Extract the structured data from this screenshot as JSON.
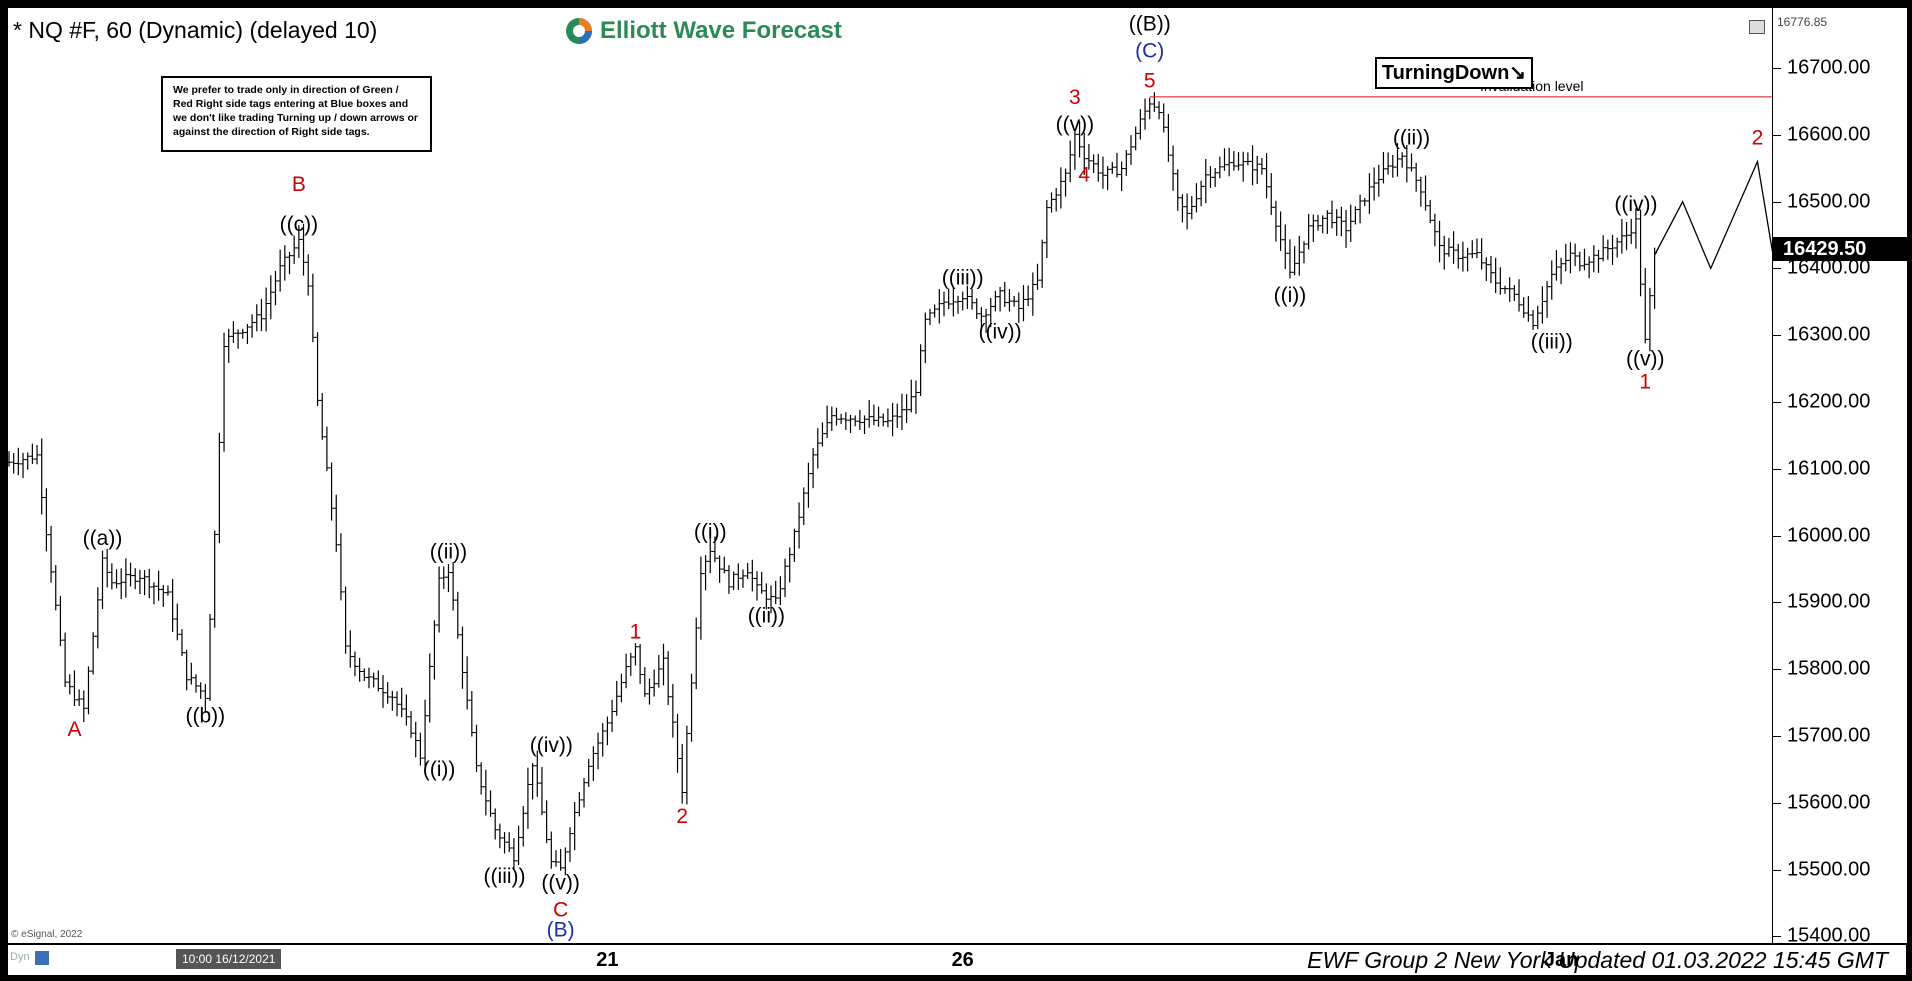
{
  "header": {
    "title": "* NQ #F, 60 (Dynamic) (delayed 10)",
    "logo_text": "Elliott Wave Forecast"
  },
  "note": {
    "text": "We prefer to trade only in direction of Green / Red Right side tags entering at Blue boxes and we don't like trading Turning up / down arrows or against the direction of Right side tags."
  },
  "badge": {
    "label": "TurningDown↘"
  },
  "footer": {
    "text": "EWF Group 2 New York Updated 01.03.2022 15:45 GMT",
    "cursor_date": "10:00 16/12/2021",
    "copyright": "© eSignal, 2022",
    "dyn_label": "Dyn"
  },
  "chart_data": {
    "type": "bar",
    "symbol": "NQ #F",
    "timeframe": "60",
    "ylim": [
      15390,
      16790
    ],
    "y_ticks": [
      "16700.00",
      "16600.00",
      "16500.00",
      "16400.00",
      "16300.00",
      "16200.00",
      "16100.00",
      "16000.00",
      "15900.00",
      "15800.00",
      "15700.00",
      "15600.00",
      "15500.00",
      "15400.00"
    ],
    "y_tick_values": [
      16700,
      16600,
      16500,
      16400,
      16300,
      16200,
      16100,
      16000,
      15900,
      15800,
      15700,
      15600,
      15500,
      15400
    ],
    "top_price": "16776.85",
    "last_price": "16429.50",
    "last_price_value": 16429.5,
    "x_ticks": [
      {
        "label": "21",
        "bar": 64
      },
      {
        "label": "26",
        "bar": 102
      },
      {
        "label": "Jan",
        "bar": 166
      }
    ],
    "path": [
      [
        0,
        16110
      ],
      [
        3,
        16120
      ],
      [
        6,
        15780
      ],
      [
        8,
        15740
      ],
      [
        10,
        15960
      ],
      [
        11,
        15930
      ],
      [
        14,
        15940
      ],
      [
        17,
        15910
      ],
      [
        19,
        15790
      ],
      [
        21,
        15760
      ],
      [
        22,
        16000
      ],
      [
        23,
        16290
      ],
      [
        25,
        16310
      ],
      [
        27,
        16330
      ],
      [
        29,
        16400
      ],
      [
        31,
        16440
      ],
      [
        32,
        16380
      ],
      [
        33,
        16200
      ],
      [
        35,
        15990
      ],
      [
        36,
        15830
      ],
      [
        38,
        15790
      ],
      [
        41,
        15760
      ],
      [
        43,
        15710
      ],
      [
        44,
        15670
      ],
      [
        46,
        15930
      ],
      [
        47,
        15950
      ],
      [
        50,
        15650
      ],
      [
        52,
        15560
      ],
      [
        54,
        15520
      ],
      [
        56,
        15660
      ],
      [
        58,
        15510
      ],
      [
        59,
        15500
      ],
      [
        60,
        15560
      ],
      [
        62,
        15660
      ],
      [
        64,
        15720
      ],
      [
        66,
        15800
      ],
      [
        67,
        15830
      ],
      [
        68,
        15760
      ],
      [
        70,
        15810
      ],
      [
        72,
        15620
      ],
      [
        74,
        15950
      ],
      [
        75,
        15980
      ],
      [
        77,
        15930
      ],
      [
        79,
        15950
      ],
      [
        80,
        15920
      ],
      [
        82,
        15900
      ],
      [
        84,
        16000
      ],
      [
        86,
        16120
      ],
      [
        88,
        16180
      ],
      [
        94,
        16170
      ],
      [
        96,
        16190
      ],
      [
        97,
        16220
      ],
      [
        98,
        16320
      ],
      [
        100,
        16350
      ],
      [
        102,
        16360
      ],
      [
        104,
        16330
      ],
      [
        106,
        16360
      ],
      [
        108,
        16340
      ],
      [
        110,
        16380
      ],
      [
        111,
        16490
      ],
      [
        113,
        16540
      ],
      [
        114,
        16600
      ],
      [
        115,
        16570
      ],
      [
        117,
        16540
      ],
      [
        119,
        16550
      ],
      [
        121,
        16620
      ],
      [
        122,
        16650
      ],
      [
        123,
        16640
      ],
      [
        125,
        16500
      ],
      [
        126,
        16480
      ],
      [
        128,
        16540
      ],
      [
        131,
        16560
      ],
      [
        134,
        16550
      ],
      [
        137,
        16390
      ],
      [
        139,
        16460
      ],
      [
        141,
        16480
      ],
      [
        143,
        16460
      ],
      [
        146,
        16530
      ],
      [
        149,
        16570
      ],
      [
        151,
        16520
      ],
      [
        153,
        16430
      ],
      [
        155,
        16420
      ],
      [
        157,
        16420
      ],
      [
        159,
        16380
      ],
      [
        161,
        16360
      ],
      [
        163,
        16320
      ],
      [
        165,
        16390
      ],
      [
        167,
        16420
      ],
      [
        168,
        16410
      ],
      [
        170,
        16420
      ],
      [
        173,
        16450
      ],
      [
        174,
        16470
      ],
      [
        175,
        16290
      ],
      [
        176,
        16420
      ]
    ],
    "projection": [
      [
        176,
        16420
      ],
      [
        179,
        16500
      ],
      [
        182,
        16400
      ],
      [
        187,
        16560
      ],
      [
        192,
        16140
      ]
    ],
    "invalidation": {
      "label": "Invalidation level",
      "value": 16656.88,
      "value_label": "16656.88",
      "bar_start": 122,
      "bar_end": 208
    },
    "annotations": [
      {
        "text": "A",
        "bar": 7,
        "price": 15730,
        "pos": "below",
        "color": "#cc0000"
      },
      {
        "text": "((a))",
        "bar": 10,
        "price": 15980,
        "pos": "above",
        "color": "#000000"
      },
      {
        "text": "((b))",
        "bar": 21,
        "price": 15750,
        "pos": "below",
        "color": "#000000"
      },
      {
        "text": "B",
        "bar": 31,
        "price": 16510,
        "pos": "above",
        "color": "#cc0000"
      },
      {
        "text": "((c))",
        "bar": 31,
        "price": 16450,
        "pos": "above",
        "color": "#000000"
      },
      {
        "text": "((i))",
        "bar": 46,
        "price": 15670,
        "pos": "below",
        "color": "#000000"
      },
      {
        "text": "((ii))",
        "bar": 47,
        "price": 15960,
        "pos": "above",
        "color": "#000000"
      },
      {
        "text": "((iii))",
        "bar": 53,
        "price": 15510,
        "pos": "below",
        "color": "#000000"
      },
      {
        "text": "((iv))",
        "bar": 58,
        "price": 15670,
        "pos": "above",
        "color": "#000000"
      },
      {
        "text": "((v))",
        "bar": 59,
        "price": 15500,
        "pos": "below",
        "color": "#000000"
      },
      {
        "text": "C",
        "bar": 59,
        "price": 15460,
        "pos": "below",
        "color": "#cc0000"
      },
      {
        "text": "(B)",
        "bar": 59,
        "price": 15430,
        "pos": "below",
        "color": "#1a2ea8"
      },
      {
        "text": "1",
        "bar": 67,
        "price": 15840,
        "pos": "above",
        "color": "#cc0000"
      },
      {
        "text": "2",
        "bar": 72,
        "price": 15600,
        "pos": "below",
        "color": "#cc0000"
      },
      {
        "text": "((i))",
        "bar": 75,
        "price": 15990,
        "pos": "above",
        "color": "#000000"
      },
      {
        "text": "((ii))",
        "bar": 81,
        "price": 15900,
        "pos": "below",
        "color": "#000000"
      },
      {
        "text": "((iii))",
        "bar": 102,
        "price": 16370,
        "pos": "above",
        "color": "#000000"
      },
      {
        "text": "((iv))",
        "bar": 106,
        "price": 16325,
        "pos": "below",
        "color": "#000000"
      },
      {
        "text": "3",
        "bar": 114,
        "price": 16640,
        "pos": "above",
        "color": "#cc0000"
      },
      {
        "text": "((v))",
        "bar": 114,
        "price": 16600,
        "pos": "above",
        "color": "#000000"
      },
      {
        "text": "4",
        "bar": 115,
        "price": 16560,
        "pos": "below",
        "color": "#cc0000"
      },
      {
        "text": "((B))",
        "bar": 122,
        "price": 16750,
        "pos": "above",
        "color": "#000000"
      },
      {
        "text": "(C)",
        "bar": 122,
        "price": 16710,
        "pos": "above",
        "color": "#1a2ea8"
      },
      {
        "text": "5",
        "bar": 122,
        "price": 16665,
        "pos": "above",
        "color": "#cc0000"
      },
      {
        "text": "((i))",
        "bar": 137,
        "price": 16380,
        "pos": "below",
        "color": "#000000"
      },
      {
        "text": "((ii))",
        "bar": 150,
        "price": 16580,
        "pos": "above",
        "color": "#000000"
      },
      {
        "text": "((iii))",
        "bar": 165,
        "price": 16310,
        "pos": "below",
        "color": "#000000"
      },
      {
        "text": "((iv))",
        "bar": 174,
        "price": 16480,
        "pos": "above",
        "color": "#000000"
      },
      {
        "text": "((v))",
        "bar": 175,
        "price": 16285,
        "pos": "below",
        "color": "#000000"
      },
      {
        "text": "1",
        "bar": 175,
        "price": 16250,
        "pos": "below",
        "color": "#cc0000"
      },
      {
        "text": "2",
        "bar": 187,
        "price": 16580,
        "pos": "above",
        "color": "#cc0000"
      }
    ]
  }
}
